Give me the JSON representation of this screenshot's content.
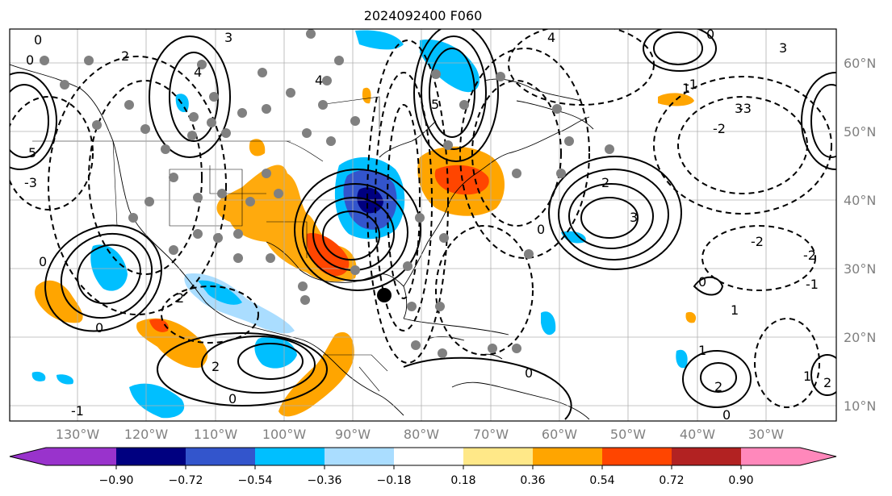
{
  "title": "2024092400 F060",
  "lon_labels": [
    "130°W",
    "120°W",
    "110°W",
    "100°W",
    "90°W",
    "80°W",
    "70°W",
    "60°W",
    "50°W",
    "40°W",
    "30°W"
  ],
  "lat_labels": [
    "60°N",
    "50°N",
    "40°N",
    "30°N",
    "20°N",
    "10°N"
  ],
  "colorbar": {
    "ticks": [
      "−0.90",
      "−0.72",
      "−0.54",
      "−0.36",
      "−0.18",
      "0.18",
      "0.36",
      "0.54",
      "0.72",
      "0.90"
    ],
    "colors": [
      "#9933cc",
      "#000080",
      "#3355cc",
      "#00bfff",
      "#aaddff",
      "#ffffff",
      "#ffe888",
      "#ffa500",
      "#ff4500",
      "#b22222",
      "#ff88bb"
    ]
  },
  "contour_labels": [
    "0",
    "0",
    "0",
    "0",
    "0",
    "0",
    "0",
    "0",
    "0",
    "0",
    "1",
    "1",
    "1",
    "1",
    "2",
    "2",
    "2",
    "2",
    "2",
    "2",
    "3",
    "3",
    "3",
    "3",
    "4",
    "4",
    "4",
    "5",
    "5",
    "-1",
    "-1",
    "-1",
    "-2",
    "-2",
    "-2",
    "-3",
    "-3"
  ],
  "colors": {
    "warm": "#ffa500",
    "warm_strong": "#ff4500",
    "cool": "#00bfff",
    "cool_light": "#aaddff",
    "cool_strong": "#3355cc",
    "cool_deep": "#000080",
    "contour": "#000000",
    "grid": "#b0b0b0",
    "station": "#808080"
  }
}
